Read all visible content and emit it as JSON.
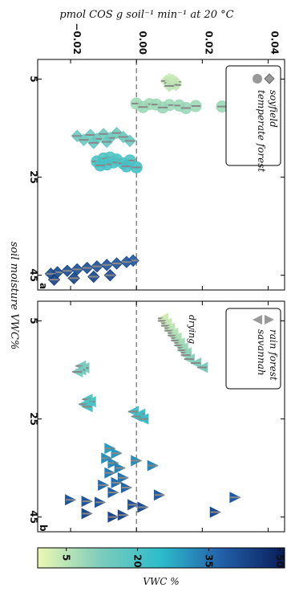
{
  "figure": {
    "top_axis_label": "pmol COS g  soil⁻¹ min⁻¹ at 20 °C",
    "side_label": "soil moisture VWC%"
  },
  "chart_data": [
    {
      "type": "scatter",
      "panel_label": "a",
      "orientation": "rotated 90deg clockwise (soil moisture runs down the page, flux runs right-to-left)",
      "xlabel": "soil moisture VWC%",
      "ylabel": "pmol COS g soil-1 min-1 at 20 C",
      "xlim": [
        1,
        48
      ],
      "ylim": [
        -0.03,
        0.045
      ],
      "x_ticks": [
        5,
        25,
        45
      ],
      "y_ticks": [
        -0.02,
        0.0,
        0.02,
        0.04
      ],
      "y_tick_labels": [
        "−0.02",
        "0.00",
        "0.02",
        "0.04"
      ],
      "zero_line": true,
      "legend": {
        "position": "top-right",
        "entries": [
          {
            "name": "soyfield",
            "marker": "diamond"
          },
          {
            "name": "temperate forest",
            "marker": "circle"
          }
        ]
      },
      "series": [
        {
          "name": "soyfield",
          "marker": "diamond",
          "points": [
            [
              5.0,
              0.01
            ],
            [
              5.2,
              0.011
            ],
            [
              5.4,
              0.009
            ],
            [
              5.6,
              0.012
            ],
            [
              5.8,
              0.01
            ],
            [
              6.0,
              0.011
            ],
            [
              6.2,
              0.012
            ],
            [
              6.4,
              0.01
            ]
          ]
        },
        {
          "name": "temperate forest",
          "marker": "circle",
          "points": [
            [
              10.0,
              0.0
            ],
            [
              10.1,
              0.004
            ],
            [
              10.2,
              0.006
            ],
            [
              10.3,
              0.01
            ],
            [
              10.4,
              0.013
            ],
            [
              10.5,
              0.018
            ],
            [
              10.6,
              0.026
            ],
            [
              10.7,
              0.002
            ],
            [
              10.8,
              0.008
            ],
            [
              10.9,
              0.015
            ],
            [
              21.0,
              -0.008
            ],
            [
              21.2,
              -0.01
            ],
            [
              21.4,
              -0.006
            ],
            [
              21.6,
              -0.002
            ],
            [
              21.8,
              -0.012
            ],
            [
              22.0,
              -0.007
            ],
            [
              22.2,
              -0.004
            ],
            [
              22.4,
              -0.009
            ],
            [
              22.6,
              -0.011
            ],
            [
              22.8,
              -0.003
            ],
            [
              23.0,
              0.0
            ]
          ]
        },
        {
          "name": "soyfield",
          "marker": "diamond",
          "points": [
            [
              16.0,
              -0.006
            ],
            [
              16.2,
              -0.01
            ],
            [
              16.4,
              -0.014
            ],
            [
              16.6,
              -0.018
            ],
            [
              16.8,
              -0.004
            ],
            [
              17.0,
              -0.008
            ],
            [
              17.2,
              -0.012
            ],
            [
              17.4,
              -0.016
            ],
            [
              17.6,
              -0.002
            ],
            [
              17.8,
              -0.009
            ],
            [
              18.0,
              -0.013
            ]
          ]
        },
        {
          "name": "temperate forest",
          "marker": "diamond",
          "points": [
            [
              42.0,
              -0.001
            ],
            [
              42.3,
              -0.003
            ],
            [
              42.6,
              -0.006
            ],
            [
              42.9,
              -0.009
            ],
            [
              43.2,
              -0.012
            ],
            [
              43.5,
              -0.015
            ],
            [
              43.8,
              -0.018
            ],
            [
              44.1,
              -0.021
            ],
            [
              44.4,
              -0.024
            ],
            [
              44.7,
              -0.026
            ],
            [
              45.0,
              -0.008
            ],
            [
              45.3,
              -0.013
            ],
            [
              45.6,
              -0.019
            ],
            [
              45.9,
              -0.025
            ]
          ]
        }
      ],
      "colorbar": {
        "label": "VWC %",
        "ticks": [
          5,
          20,
          35,
          50
        ]
      }
    },
    {
      "type": "scatter",
      "panel_label": "b",
      "orientation": "rotated 90deg clockwise (soil moisture runs down the page, flux runs right-to-left)",
      "xlabel": "soil moisture VWC%",
      "ylabel": "pmol COS g soil-1 min-1 at 20 C",
      "xlim": [
        1,
        48
      ],
      "ylim": [
        -0.03,
        0.045
      ],
      "x_ticks": [
        5,
        25,
        45
      ],
      "y_ticks": [
        -0.02,
        0.0,
        0.02,
        0.04
      ],
      "zero_line": true,
      "annotation": "drying",
      "legend": {
        "position": "top-right",
        "entries": [
          {
            "name": "rain forest",
            "marker": "triangle-right"
          },
          {
            "name": "savannah",
            "marker": "triangle-left"
          }
        ]
      },
      "series": [
        {
          "name": "savannah",
          "marker": "triangle-left",
          "points": [
            [
              4.5,
              0.008
            ],
            [
              5.0,
              0.008
            ],
            [
              5.5,
              0.009
            ],
            [
              6.0,
              0.009
            ],
            [
              6.5,
              0.01
            ],
            [
              7.0,
              0.01
            ],
            [
              7.5,
              0.011
            ],
            [
              8.0,
              0.011
            ],
            [
              8.5,
              0.012
            ],
            [
              9.0,
              0.012
            ],
            [
              9.5,
              0.013
            ],
            [
              10.0,
              0.013
            ],
            [
              10.5,
              0.014
            ],
            [
              11.0,
              0.014
            ],
            [
              11.5,
              0.015
            ],
            [
              12.0,
              0.015
            ],
            [
              12.8,
              0.016
            ],
            [
              13.6,
              0.018
            ],
            [
              14.5,
              0.02
            ],
            [
              14.2,
              -0.017
            ],
            [
              14.6,
              -0.016
            ],
            [
              15.0,
              -0.017
            ],
            [
              15.4,
              -0.018
            ],
            [
              21.0,
              -0.015
            ],
            [
              21.5,
              -0.014
            ],
            [
              22.0,
              -0.016
            ],
            [
              22.5,
              -0.015
            ],
            [
              23.5,
              -0.001
            ],
            [
              24.0,
              0.001
            ],
            [
              24.5,
              0.0
            ],
            [
              25.0,
              0.002
            ]
          ]
        },
        {
          "name": "rain forest",
          "marker": "triangle-right",
          "points": [
            [
              31.0,
              -0.008
            ],
            [
              32.0,
              -0.006
            ],
            [
              33.0,
              -0.009
            ],
            [
              33.5,
              0.0
            ],
            [
              34.0,
              -0.007
            ],
            [
              34.5,
              0.005
            ],
            [
              35.0,
              -0.005
            ],
            [
              36.0,
              -0.008
            ],
            [
              37.0,
              -0.004
            ],
            [
              38.0,
              -0.006
            ],
            [
              38.5,
              -0.01
            ],
            [
              39.0,
              -0.003
            ],
            [
              40.0,
              -0.007
            ],
            [
              40.5,
              0.007
            ],
            [
              41.0,
              0.03
            ],
            [
              41.5,
              -0.02
            ],
            [
              41.8,
              -0.015
            ],
            [
              42.0,
              -0.011
            ],
            [
              42.5,
              -0.001
            ],
            [
              43.0,
              0.002
            ],
            [
              44.0,
              0.024
            ],
            [
              44.3,
              -0.015
            ],
            [
              44.6,
              -0.004
            ],
            [
              45.0,
              -0.007
            ]
          ]
        }
      ]
    }
  ]
}
